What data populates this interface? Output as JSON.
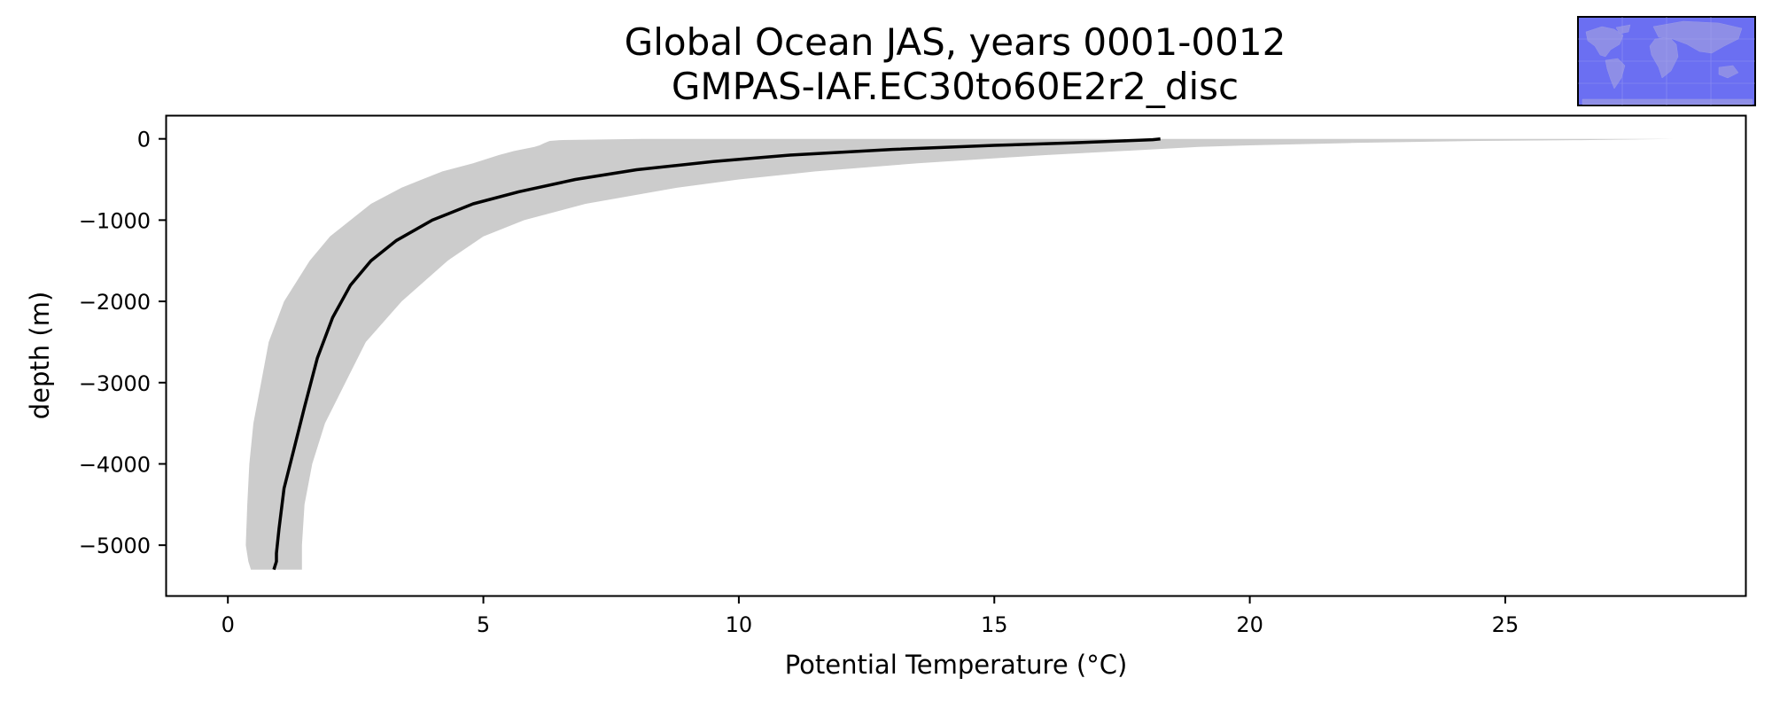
{
  "chart_data": {
    "type": "line",
    "title": [
      "Global Ocean JAS, years 0001-0012",
      "GMPAS-IAF.EC30to60E2r2_disc"
    ],
    "xlabel": "Potential Temperature (°C)",
    "ylabel": "depth (m)",
    "xlim": [
      -1.2,
      29.7
    ],
    "ylim": [
      -5620,
      280
    ],
    "xticks": [
      0,
      5,
      10,
      15,
      20,
      25
    ],
    "yticks": [
      0,
      -1000,
      -2000,
      -3000,
      -4000,
      -5000
    ],
    "xtick_labels": [
      "0",
      "5",
      "10",
      "15",
      "20",
      "25"
    ],
    "ytick_labels": [
      "0",
      "−1000",
      "−2000",
      "−3000",
      "−4000",
      "−5000"
    ],
    "grid": false,
    "colors": {
      "mean_line": "#000000",
      "spread_band": "#cccccc",
      "inset_ocean": "#6b6ff2"
    },
    "inset": "world-map",
    "series": [
      {
        "kind": "mean",
        "points": [
          {
            "x": 18.25,
            "y": 0
          },
          {
            "x": 18.1,
            "y": -10
          },
          {
            "x": 17.5,
            "y": -25
          },
          {
            "x": 16.5,
            "y": -50
          },
          {
            "x": 15.0,
            "y": -80
          },
          {
            "x": 13.0,
            "y": -130
          },
          {
            "x": 11.0,
            "y": -200
          },
          {
            "x": 9.5,
            "y": -280
          },
          {
            "x": 8.0,
            "y": -380
          },
          {
            "x": 6.8,
            "y": -500
          },
          {
            "x": 5.7,
            "y": -650
          },
          {
            "x": 4.8,
            "y": -800
          },
          {
            "x": 4.0,
            "y": -1000
          },
          {
            "x": 3.3,
            "y": -1250
          },
          {
            "x": 2.8,
            "y": -1500
          },
          {
            "x": 2.4,
            "y": -1800
          },
          {
            "x": 2.05,
            "y": -2200
          },
          {
            "x": 1.75,
            "y": -2700
          },
          {
            "x": 1.5,
            "y": -3300
          },
          {
            "x": 1.3,
            "y": -3800
          },
          {
            "x": 1.1,
            "y": -4300
          },
          {
            "x": 1.0,
            "y": -4800
          },
          {
            "x": 0.95,
            "y": -5100
          },
          {
            "x": 0.95,
            "y": -5200
          },
          {
            "x": 0.9,
            "y": -5300
          }
        ]
      },
      {
        "kind": "spread",
        "points": [
          {
            "y": 0,
            "min": 8.1,
            "max": 28.3
          },
          {
            "y": -15,
            "min": 6.5,
            "max": 26.5
          },
          {
            "y": -25,
            "min": 6.3,
            "max": 24.5
          },
          {
            "y": -50,
            "min": 6.2,
            "max": 22.0
          },
          {
            "y": -80,
            "min": 6.1,
            "max": 20.0
          },
          {
            "y": -100,
            "min": 6.0,
            "max": 19.0
          },
          {
            "y": -150,
            "min": 5.6,
            "max": 17.5
          },
          {
            "y": -200,
            "min": 5.3,
            "max": 16.0
          },
          {
            "y": -300,
            "min": 4.8,
            "max": 13.5
          },
          {
            "y": -400,
            "min": 4.2,
            "max": 11.5
          },
          {
            "y": -500,
            "min": 3.8,
            "max": 10.0
          },
          {
            "y": -600,
            "min": 3.4,
            "max": 8.8
          },
          {
            "y": -800,
            "min": 2.8,
            "max": 7.0
          },
          {
            "y": -1000,
            "min": 2.4,
            "max": 5.8
          },
          {
            "y": -1200,
            "min": 2.0,
            "max": 5.0
          },
          {
            "y": -1500,
            "min": 1.6,
            "max": 4.3
          },
          {
            "y": -2000,
            "min": 1.1,
            "max": 3.4
          },
          {
            "y": -2500,
            "min": 0.8,
            "max": 2.7
          },
          {
            "y": -3000,
            "min": 0.65,
            "max": 2.3
          },
          {
            "y": -3500,
            "min": 0.5,
            "max": 1.9
          },
          {
            "y": -4000,
            "min": 0.42,
            "max": 1.65
          },
          {
            "y": -4500,
            "min": 0.38,
            "max": 1.5
          },
          {
            "y": -5000,
            "min": 0.35,
            "max": 1.45
          },
          {
            "y": -5200,
            "min": 0.4,
            "max": 1.45
          },
          {
            "y": -5300,
            "min": 0.45,
            "max": 1.45
          }
        ]
      }
    ]
  }
}
